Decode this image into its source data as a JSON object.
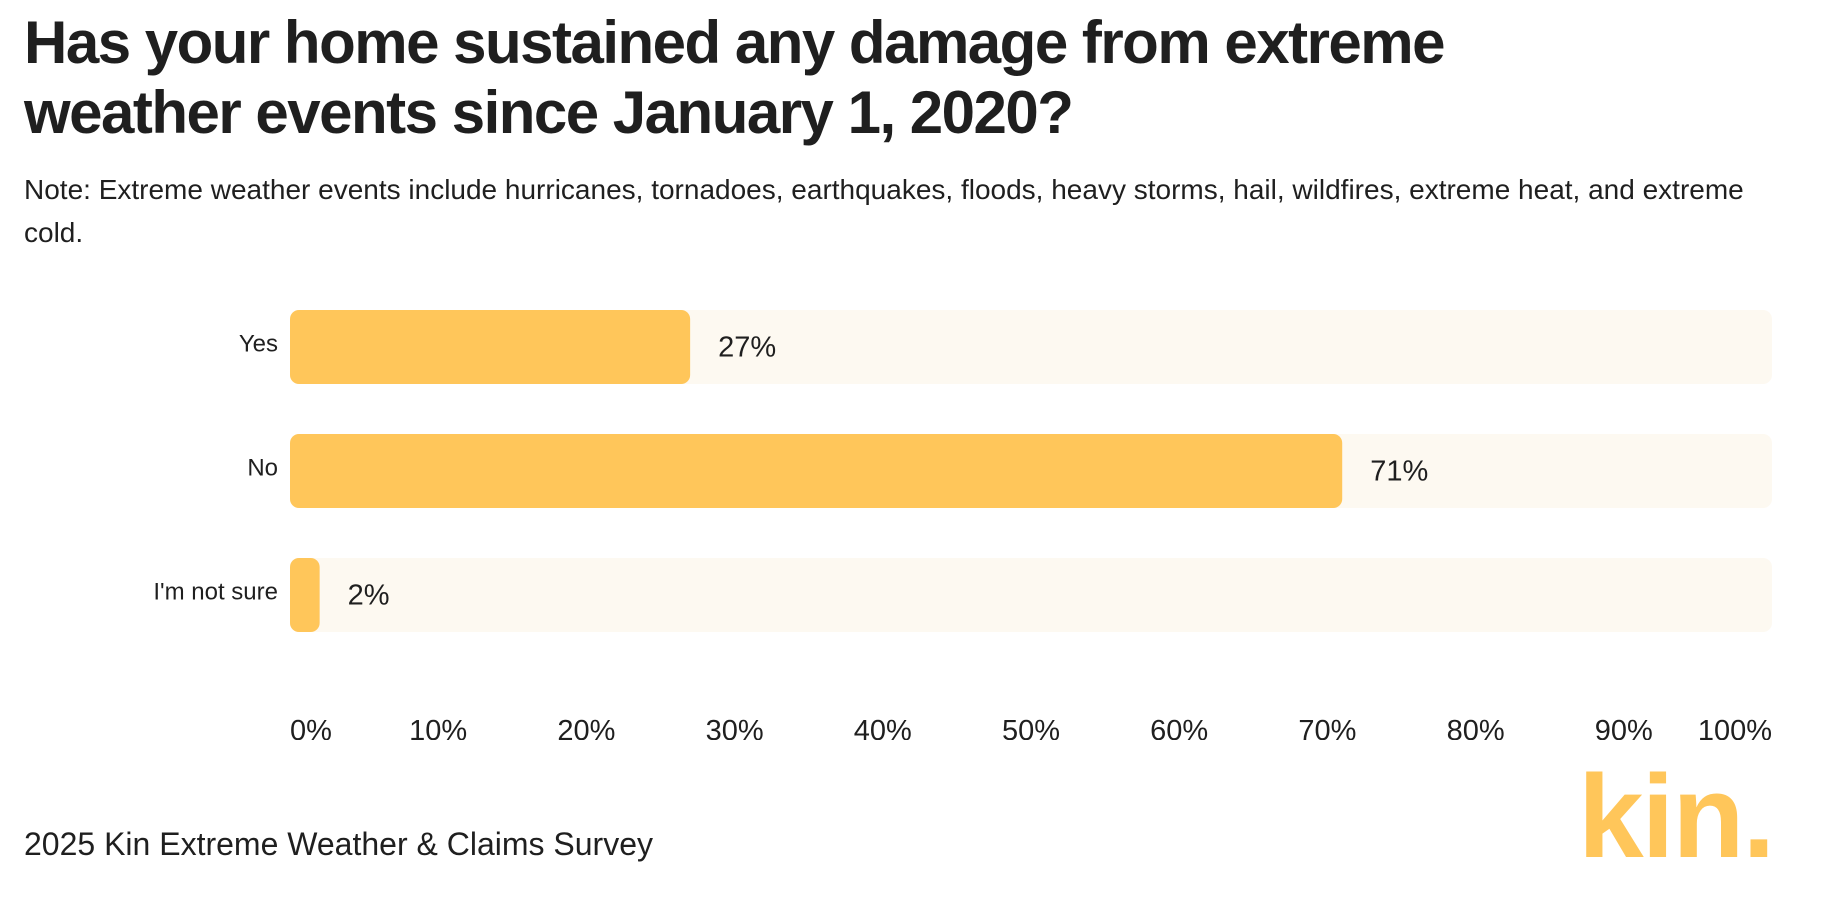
{
  "title": "Has your home sustained any damage from extreme weather events since January 1, 2020?",
  "note": "Note: Extreme weather events include hurricanes, tornadoes, earthquakes, floods, heavy storms, hail, wildfires, extreme heat, and extreme cold.",
  "source": "2025 Kin Extreme Weather & Claims Survey",
  "logo": {
    "text": "kin.",
    "color": "#FFC65A"
  },
  "colors": {
    "bar": "#FFC65A",
    "track": "#FDF9F1",
    "text": "#1F1F1F"
  },
  "chart_data": {
    "type": "bar",
    "orientation": "horizontal",
    "categories": [
      "Yes",
      "No",
      "I'm not sure"
    ],
    "values": [
      27,
      71,
      2
    ],
    "value_labels": [
      "27%",
      "71%",
      "2%"
    ],
    "xlim": [
      0,
      100
    ],
    "xticks": [
      "0%",
      "10%",
      "20%",
      "30%",
      "40%",
      "50%",
      "60%",
      "70%",
      "80%",
      "90%",
      "100%"
    ],
    "grid": false,
    "legend": "none"
  }
}
